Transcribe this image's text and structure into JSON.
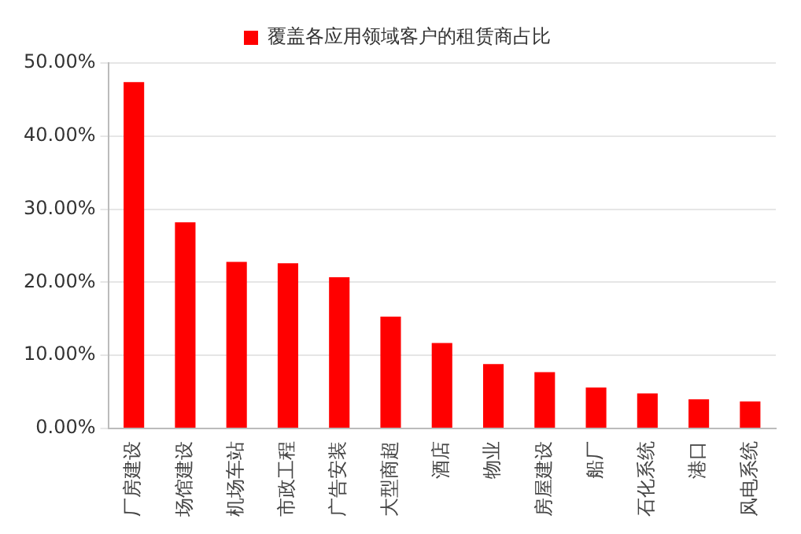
{
  "chart_data": {
    "type": "bar",
    "categories": [
      "厂房建设",
      "场馆建设",
      "机场车站",
      "市政工程",
      "广告安装",
      "大型商超",
      "酒店",
      "物业",
      "房屋建设",
      "船厂",
      "石化系统",
      "港口",
      "风电系统"
    ],
    "series": [
      {
        "name": "覆盖各应用领域客户的租赁商占比",
        "color": "#ff0000",
        "values": [
          47.4,
          28.2,
          22.8,
          22.6,
          20.7,
          15.3,
          11.7,
          8.8,
          7.7,
          5.6,
          4.8,
          4.0,
          3.7
        ]
      }
    ],
    "ylim": [
      0,
      50
    ],
    "yticks": [
      {
        "value": 0,
        "label": "0.00%"
      },
      {
        "value": 10,
        "label": "10.00%"
      },
      {
        "value": 20,
        "label": "20.00%"
      },
      {
        "value": 30,
        "label": "30.00%"
      },
      {
        "value": 40,
        "label": "40.00%"
      },
      {
        "value": 50,
        "label": "50.00%"
      }
    ],
    "grid": "y",
    "legend": "top"
  }
}
